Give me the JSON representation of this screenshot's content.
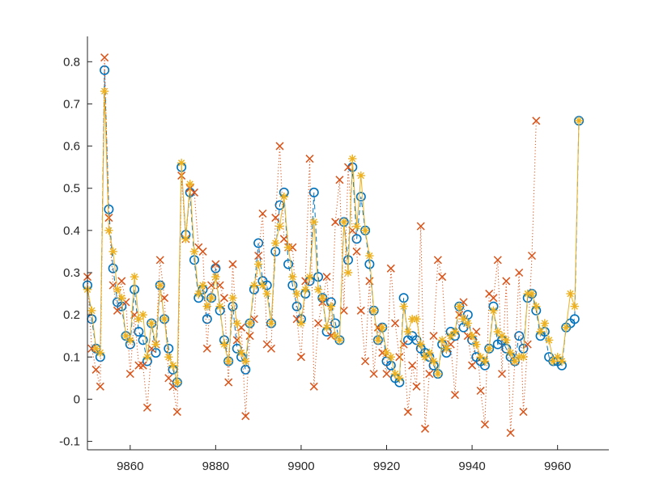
{
  "chart_data": {
    "type": "line",
    "title": "",
    "xlabel": "",
    "ylabel": "",
    "xlim": [
      9850,
      9972
    ],
    "ylim": [
      -0.12,
      0.86
    ],
    "grid": false,
    "legend": "none",
    "x_ticks": [
      9860,
      9880,
      9900,
      9920,
      9940,
      9960
    ],
    "x_tick_labels": [
      "9860",
      "9880",
      "9900",
      "9920",
      "9940",
      "9960"
    ],
    "y_ticks": [
      -0.1,
      0,
      0.1,
      0.2,
      0.3,
      0.4,
      0.5,
      0.6,
      0.7,
      0.8
    ],
    "y_tick_labels": [
      "-0.1",
      "0",
      "0.1",
      "0.2",
      "0.3",
      "0.4",
      "0.5",
      "0.6",
      "0.7",
      "0.8"
    ],
    "colors": {
      "s1": "#0072bd",
      "s2": "#d95319",
      "s3": "#edb120",
      "axis": "#262626"
    },
    "series": [
      {
        "marker": "circle",
        "line": "dashed",
        "x_start": 9850,
        "values": [
          0.27,
          0.19,
          0.12,
          0.1,
          0.78,
          0.45,
          0.31,
          0.23,
          0.22,
          0.15,
          0.13,
          0.26,
          0.16,
          0.14,
          0.09,
          0.18,
          0.11,
          0.27,
          0.19,
          0.12,
          0.07,
          0.04,
          0.55,
          0.39,
          0.49,
          0.33,
          0.24,
          0.26,
          0.19,
          0.24,
          0.31,
          0.21,
          0.14,
          0.09,
          0.22,
          0.12,
          0.1,
          0.07,
          0.18,
          0.26,
          0.37,
          0.28,
          0.27,
          0.18,
          0.35,
          0.46,
          0.49,
          0.32,
          0.27,
          0.22,
          0.19,
          0.25,
          0.28,
          0.49,
          0.29,
          0.24,
          0.16,
          0.23,
          0.18,
          0.14,
          0.42,
          0.33,
          0.55,
          0.38,
          0.48,
          0.4,
          0.32,
          0.21,
          0.14,
          0.17,
          0.09,
          0.08,
          0.05,
          0.04,
          0.24,
          0.14,
          0.15,
          0.14,
          0.12,
          0.11,
          0.1,
          0.08,
          0.06,
          0.13,
          0.11,
          0.16,
          0.15,
          0.22,
          0.17,
          0.2,
          0.14,
          0.1,
          0.09,
          0.08,
          0.12,
          0.22,
          0.13,
          0.14,
          0.12,
          0.1,
          0.09,
          0.15,
          0.12,
          0.24,
          0.25,
          0.21,
          0.15,
          0.16,
          0.1,
          0.09,
          0.09,
          0.08,
          0.17,
          0.18,
          0.19,
          0.66
        ]
      },
      {
        "marker": "cross",
        "line": "dotted",
        "x_start": 9850,
        "values": [
          0.29,
          0.12,
          0.07,
          0.03,
          0.81,
          0.43,
          0.27,
          0.21,
          0.28,
          0.23,
          0.06,
          0.2,
          0.08,
          0.08,
          -0.02,
          0.12,
          0.13,
          0.33,
          0.24,
          0.05,
          0.03,
          -0.03,
          0.53,
          0.38,
          0.5,
          0.49,
          0.36,
          0.35,
          0.12,
          0.27,
          0.32,
          0.27,
          0.24,
          0.04,
          0.32,
          0.14,
          0.17,
          -0.04,
          0.15,
          0.19,
          0.34,
          0.44,
          0.13,
          0.12,
          0.43,
          0.6,
          0.38,
          0.36,
          0.36,
          0.19,
          0.1,
          0.28,
          0.57,
          0.03,
          0.18,
          0.23,
          0.29,
          0.15,
          0.42,
          0.52,
          0.21,
          0.55,
          0.4,
          0.35,
          0.21,
          0.09,
          0.28,
          0.06,
          0.17,
          0.11,
          0.06,
          0.31,
          0.18,
          0.1,
          0.13,
          -0.03,
          0.08,
          0.03,
          0.41,
          -0.07,
          0.06,
          0.15,
          0.33,
          0.29,
          0.12,
          0.13,
          0.01,
          0.2,
          0.23,
          0.15,
          0.08,
          0.16,
          0.02,
          -0.06,
          0.25,
          0.24,
          0.33,
          0.06,
          0.28,
          -0.08,
          0.09,
          0.3,
          -0.03,
          0.13,
          0.34,
          0.66
        ]
      },
      {
        "marker": "star",
        "line": "solid",
        "x_start": 9850,
        "values": [
          0.26,
          0.21,
          0.12,
          0.11,
          0.73,
          0.4,
          0.35,
          0.26,
          0.24,
          0.15,
          0.14,
          0.29,
          0.19,
          0.2,
          0.1,
          0.18,
          0.13,
          0.27,
          0.19,
          0.1,
          0.08,
          0.04,
          0.56,
          0.38,
          0.51,
          0.35,
          0.25,
          0.27,
          0.22,
          0.24,
          0.29,
          0.22,
          0.13,
          0.09,
          0.24,
          0.18,
          0.11,
          0.09,
          0.18,
          0.27,
          0.32,
          0.27,
          0.25,
          0.18,
          0.37,
          0.41,
          0.48,
          0.36,
          0.29,
          0.25,
          0.18,
          0.26,
          0.29,
          0.42,
          0.26,
          0.24,
          0.17,
          0.22,
          0.15,
          0.14,
          0.42,
          0.3,
          0.57,
          0.41,
          0.53,
          0.4,
          0.34,
          0.21,
          0.14,
          0.17,
          0.11,
          0.1,
          0.06,
          0.05,
          0.22,
          0.16,
          0.19,
          0.19,
          0.13,
          0.1,
          0.11,
          0.09,
          0.06,
          0.14,
          0.12,
          0.15,
          0.16,
          0.22,
          0.19,
          0.18,
          0.15,
          0.13,
          0.1,
          0.09,
          0.12,
          0.21,
          0.16,
          0.15,
          0.14,
          0.11,
          0.09,
          0.1,
          0.1,
          0.25,
          0.25,
          0.22,
          0.16,
          0.18,
          0.14,
          0.09,
          0.1,
          0.09,
          0.17,
          0.25,
          0.22,
          0.66
        ]
      }
    ]
  }
}
